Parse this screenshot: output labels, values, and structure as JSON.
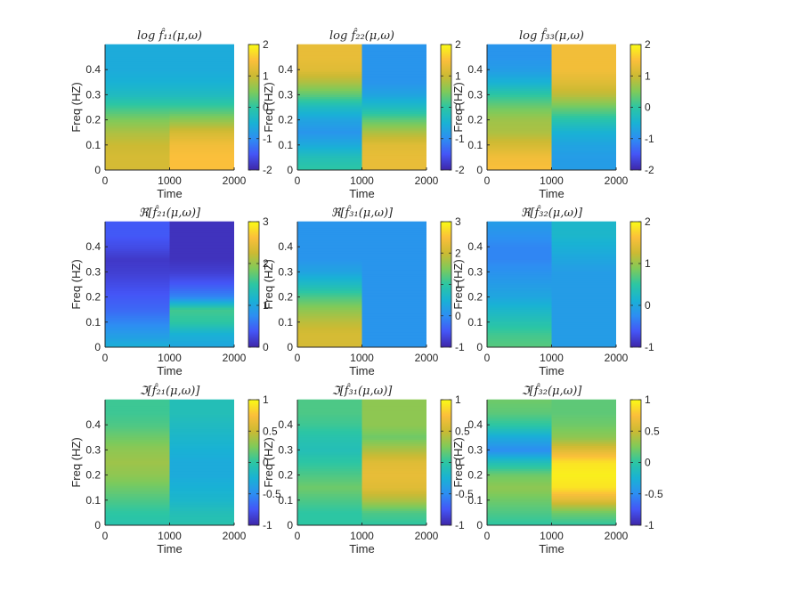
{
  "figure": {
    "layout": "3x3 grid of heatmaps",
    "colormap": "parula",
    "colormap_stops": [
      "#3e26a8",
      "#4455f6",
      "#2d8ef2",
      "#19b2d4",
      "#2cc6a3",
      "#7fca5a",
      "#ccba33",
      "#fbbf3b",
      "#f9fb15"
    ]
  },
  "chart_data": [
    {
      "type": "heatmap",
      "title": "log f̂₁₁(μ,ω)",
      "xlabel": "Time",
      "ylabel": "Freq (HZ)",
      "xlim": [
        0,
        2000
      ],
      "ylim": [
        0,
        0.5
      ],
      "xticks": [
        "0",
        "1000",
        "2000"
      ],
      "yticks": [
        "0",
        "0.1",
        "0.2",
        "0.3",
        "0.4"
      ],
      "clim": [
        -2,
        2
      ],
      "colorbar_ticks": [
        "-2",
        "-1",
        "0",
        "1",
        "2"
      ],
      "freq": [
        0,
        0.05,
        0.1,
        0.15,
        0.2,
        0.25,
        0.3,
        0.35,
        0.4,
        0.45,
        0.5
      ],
      "segments": [
        {
          "time": [
            0,
            1000
          ],
          "values": [
            1.1,
            1.1,
            1.0,
            0.8,
            0.5,
            0.1,
            -0.3,
            -0.5,
            -0.6,
            -0.6,
            -0.6
          ]
        },
        {
          "time": [
            1000,
            2000
          ],
          "values": [
            1.5,
            1.5,
            1.4,
            1.1,
            0.6,
            0.1,
            -0.3,
            -0.5,
            -0.6,
            -0.6,
            -0.6
          ]
        }
      ]
    },
    {
      "type": "heatmap",
      "title": "log f̂₂₂(μ,ω)",
      "xlabel": "Time",
      "ylabel": "Freq (HZ)",
      "xlim": [
        0,
        2000
      ],
      "ylim": [
        0,
        0.5
      ],
      "xticks": [
        "0",
        "1000",
        "2000"
      ],
      "yticks": [
        "0",
        "0.1",
        "0.2",
        "0.3",
        "0.4"
      ],
      "clim": [
        -2,
        2
      ],
      "colorbar_ticks": [
        "-2",
        "-1",
        "0",
        "1",
        "2"
      ],
      "freq": [
        0,
        0.05,
        0.1,
        0.15,
        0.2,
        0.25,
        0.3,
        0.35,
        0.4,
        0.45,
        0.5
      ],
      "segments": [
        {
          "time": [
            0,
            1000
          ],
          "values": [
            0.0,
            -0.2,
            -0.6,
            -0.9,
            -0.7,
            -0.3,
            0.3,
            0.8,
            1.2,
            1.3,
            1.3
          ]
        },
        {
          "time": [
            1000,
            2000
          ],
          "values": [
            1.3,
            1.3,
            1.2,
            0.8,
            0.3,
            -0.3,
            -0.7,
            -0.9,
            -0.9,
            -0.9,
            -0.9
          ]
        }
      ]
    },
    {
      "type": "heatmap",
      "title": "log f̂₃₃(μ,ω)",
      "xlabel": "Time",
      "ylabel": "Freq (HZ)",
      "xlim": [
        0,
        2000
      ],
      "ylim": [
        0,
        0.5
      ],
      "xticks": [
        "0",
        "1000",
        "2000"
      ],
      "yticks": [
        "0",
        "0.1",
        "0.2",
        "0.3",
        "0.4"
      ],
      "clim": [
        -2,
        2
      ],
      "colorbar_ticks": [
        "-2",
        "-1",
        "0",
        "1",
        "2"
      ],
      "freq": [
        0,
        0.05,
        0.1,
        0.15,
        0.2,
        0.25,
        0.3,
        0.35,
        0.4,
        0.45,
        0.5
      ],
      "segments": [
        {
          "time": [
            0,
            1000
          ],
          "values": [
            1.5,
            1.4,
            1.1,
            0.8,
            0.7,
            0.4,
            0.0,
            -0.5,
            -0.8,
            -0.9,
            -0.9
          ]
        },
        {
          "time": [
            1000,
            2000
          ],
          "values": [
            -0.8,
            -0.8,
            -0.7,
            -0.5,
            -0.1,
            0.4,
            0.9,
            1.2,
            1.4,
            1.4,
            1.4
          ]
        }
      ]
    },
    {
      "type": "heatmap",
      "title": "ℜ[f̂₂₁(μ,ω)]",
      "xlabel": "Time",
      "ylabel": "Freq (HZ)",
      "xlim": [
        0,
        2000
      ],
      "ylim": [
        0,
        0.5
      ],
      "xticks": [
        "0",
        "1000",
        "2000"
      ],
      "yticks": [
        "0",
        "0.1",
        "0.2",
        "0.3",
        "0.4"
      ],
      "clim": [
        0,
        3
      ],
      "colorbar_ticks": [
        "0",
        "1",
        "2",
        "3"
      ],
      "freq": [
        0,
        0.05,
        0.1,
        0.15,
        0.2,
        0.25,
        0.3,
        0.35,
        0.4,
        0.45,
        0.5
      ],
      "segments": [
        {
          "time": [
            0,
            1000
          ],
          "values": [
            1.1,
            0.9,
            0.7,
            0.5,
            0.4,
            0.3,
            0.2,
            0.15,
            0.3,
            0.4,
            0.4
          ]
        },
        {
          "time": [
            1000,
            2000
          ],
          "values": [
            1.0,
            1.1,
            1.5,
            1.6,
            0.7,
            0.4,
            0.2,
            0.1,
            0.1,
            0.1,
            0.1
          ]
        }
      ]
    },
    {
      "type": "heatmap",
      "title": "ℜ[f̂₃₁(μ,ω)]",
      "xlabel": "Time",
      "ylabel": "Freq (HZ)",
      "xlim": [
        0,
        2000
      ],
      "ylim": [
        0,
        0.5
      ],
      "xticks": [
        "0",
        "1000",
        "2000"
      ],
      "yticks": [
        "0",
        "0.1",
        "0.2",
        "0.3",
        "0.4"
      ],
      "clim": [
        -1,
        3
      ],
      "colorbar_ticks": [
        "-1",
        "0",
        "1",
        "2",
        "3"
      ],
      "freq": [
        0,
        0.05,
        0.1,
        0.15,
        0.2,
        0.25,
        0.3,
        0.35,
        0.4,
        0.45,
        0.5
      ],
      "segments": [
        {
          "time": [
            0,
            1000
          ],
          "values": [
            2.1,
            2.1,
            1.9,
            1.6,
            1.2,
            0.7,
            0.3,
            0.1,
            0.1,
            0.1,
            0.1
          ]
        },
        {
          "time": [
            1000,
            2000
          ],
          "values": [
            0.1,
            0.1,
            0.1,
            0.1,
            0.1,
            0.1,
            0.1,
            0.1,
            0.1,
            0.1,
            0.1
          ]
        }
      ]
    },
    {
      "type": "heatmap",
      "title": "ℜ[f̂₃₂(μ,ω)]",
      "xlabel": "Time",
      "ylabel": "Freq (HZ)",
      "xlim": [
        0,
        2000
      ],
      "ylim": [
        0,
        0.5
      ],
      "xticks": [
        "0",
        "1000",
        "2000"
      ],
      "yticks": [
        "0",
        "0.1",
        "0.2",
        "0.3",
        "0.4"
      ],
      "clim": [
        -1,
        2
      ],
      "colorbar_ticks": [
        "-1",
        "0",
        "1",
        "2"
      ],
      "freq": [
        0,
        0.05,
        0.1,
        0.15,
        0.2,
        0.25,
        0.3,
        0.35,
        0.4,
        0.45,
        0.5
      ],
      "segments": [
        {
          "time": [
            0,
            1000
          ],
          "values": [
            0.7,
            0.6,
            0.4,
            0.2,
            0.0,
            -0.1,
            -0.2,
            -0.3,
            -0.3,
            -0.2,
            -0.1
          ]
        },
        {
          "time": [
            1000,
            2000
          ],
          "values": [
            -0.1,
            -0.1,
            -0.1,
            -0.1,
            -0.1,
            -0.1,
            -0.1,
            0.0,
            0.1,
            0.2,
            0.2
          ]
        }
      ]
    },
    {
      "type": "heatmap",
      "title": "ℑ[f̂₂₁(μ,ω)]",
      "xlabel": "Time",
      "ylabel": "Freq (HZ)",
      "xlim": [
        0,
        2000
      ],
      "ylim": [
        0,
        0.5
      ],
      "xticks": [
        "0",
        "1000",
        "2000"
      ],
      "yticks": [
        "0",
        "0.1",
        "0.2",
        "0.3",
        "0.4"
      ],
      "clim": [
        -1,
        1
      ],
      "colorbar_ticks": [
        "-1",
        "-0.5",
        "0",
        "0.5",
        "1"
      ],
      "freq": [
        0,
        0.05,
        0.1,
        0.15,
        0.2,
        0.25,
        0.3,
        0.35,
        0.4,
        0.45,
        0.5
      ],
      "segments": [
        {
          "time": [
            0,
            1000
          ],
          "values": [
            -0.05,
            0.0,
            0.1,
            0.2,
            0.3,
            0.35,
            0.3,
            0.2,
            0.1,
            0.05,
            0.05
          ]
        },
        {
          "time": [
            1000,
            2000
          ],
          "values": [
            -0.05,
            -0.1,
            -0.2,
            -0.25,
            -0.3,
            -0.3,
            -0.25,
            -0.2,
            -0.15,
            -0.1,
            -0.1
          ]
        }
      ]
    },
    {
      "type": "heatmap",
      "title": "ℑ[f̂₃₁(μ,ω)]",
      "xlabel": "Time",
      "ylabel": "Freq (HZ)",
      "xlim": [
        0,
        2000
      ],
      "ylim": [
        0,
        0.5
      ],
      "xticks": [
        "0",
        "1000",
        "2000"
      ],
      "yticks": [
        "0",
        "0.1",
        "0.2",
        "0.3",
        "0.4"
      ],
      "clim": [
        -1,
        1
      ],
      "colorbar_ticks": [
        "-1",
        "-0.5",
        "0",
        "0.5",
        "1"
      ],
      "freq": [
        0,
        0.05,
        0.1,
        0.15,
        0.2,
        0.25,
        0.3,
        0.35,
        0.4,
        0.45,
        0.5
      ],
      "segments": [
        {
          "time": [
            0,
            1000
          ],
          "values": [
            0.0,
            0.0,
            0.1,
            0.2,
            0.1,
            0.0,
            -0.1,
            -0.05,
            0.05,
            0.1,
            0.1
          ]
        },
        {
          "time": [
            1000,
            2000
          ],
          "values": [
            0.0,
            0.1,
            0.4,
            0.6,
            0.65,
            0.6,
            0.4,
            0.2,
            0.3,
            0.3,
            0.3
          ]
        }
      ]
    },
    {
      "type": "heatmap",
      "title": "ℑ[f̂₃₂(μ,ω)]",
      "xlabel": "Time",
      "ylabel": "Freq (HZ)",
      "xlim": [
        0,
        2000
      ],
      "ylim": [
        0,
        0.5
      ],
      "xticks": [
        "0",
        "1000",
        "2000"
      ],
      "yticks": [
        "0",
        "0.1",
        "0.2",
        "0.3",
        "0.4"
      ],
      "clim": [
        -1,
        1
      ],
      "colorbar_ticks": [
        "-1",
        "-0.5",
        "0",
        "0.5",
        "1"
      ],
      "freq": [
        0,
        0.05,
        0.1,
        0.15,
        0.2,
        0.25,
        0.3,
        0.35,
        0.4,
        0.45,
        0.5
      ],
      "segments": [
        {
          "time": [
            0,
            1000
          ],
          "values": [
            0.0,
            0.1,
            0.2,
            0.3,
            0.2,
            -0.1,
            -0.5,
            -0.3,
            0.0,
            0.15,
            0.2
          ]
        },
        {
          "time": [
            1000,
            2000
          ],
          "values": [
            0.0,
            0.2,
            0.6,
            0.9,
            0.95,
            0.9,
            0.6,
            0.3,
            0.2,
            0.15,
            0.15
          ]
        }
      ]
    }
  ]
}
